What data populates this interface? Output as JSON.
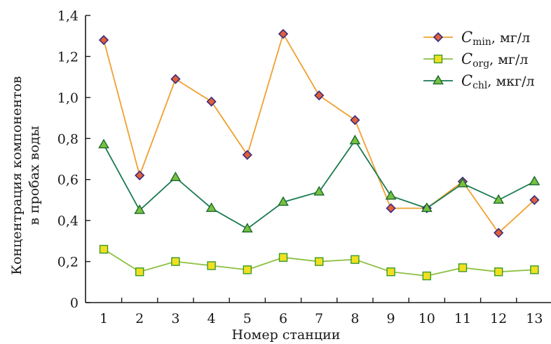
{
  "chart_data": {
    "type": "line",
    "xlabel": "Номер станции",
    "ylabel_lines": [
      "Концентрация компонентов",
      "в пробах воды"
    ],
    "ylim": [
      0,
      1.4
    ],
    "yticks": [
      0,
      0.2,
      0.4,
      0.6,
      0.8,
      1.0,
      1.2,
      1.4
    ],
    "ytick_labels": [
      "0",
      "0,2",
      "0,4",
      "0,6",
      "0,8",
      "1,0",
      "1,2",
      "1,4"
    ],
    "x": [
      "1",
      "2",
      "3",
      "4",
      "5",
      "6",
      "7",
      "8",
      "9",
      "10",
      "11",
      "12",
      "13"
    ],
    "grid": false,
    "legend_position": "top-right",
    "series": [
      {
        "name": "C_min, мг/л",
        "symbol": "C",
        "subscript": "min",
        "unit": ", мг/л",
        "line_color": "#f0a030",
        "marker": "diamond",
        "marker_fill": "#e0603a",
        "marker_edge": "#3a2a80",
        "values": [
          1.28,
          0.62,
          1.09,
          0.98,
          0.72,
          1.31,
          1.01,
          0.89,
          0.46,
          0.46,
          0.59,
          0.34,
          0.5
        ]
      },
      {
        "name": "C_org, мг/л",
        "symbol": "C",
        "subscript": "org",
        "unit": ", мг/л",
        "line_color": "#8cc040",
        "marker": "square",
        "marker_fill": "#f0e020",
        "marker_edge": "#3a9a2a",
        "values": [
          0.26,
          0.15,
          0.2,
          0.18,
          0.16,
          0.22,
          0.2,
          0.21,
          0.15,
          0.13,
          0.17,
          0.15,
          0.16
        ]
      },
      {
        "name": "C_chl, мкг/л",
        "symbol": "C",
        "subscript": "chl",
        "unit": ", мкг/л",
        "line_color": "#1a7a50",
        "marker": "triangle",
        "marker_fill": "#7ac040",
        "marker_edge": "#1a6a30",
        "values": [
          0.77,
          0.45,
          0.61,
          0.46,
          0.36,
          0.49,
          0.54,
          0.79,
          0.52,
          0.46,
          0.58,
          0.5,
          0.59
        ]
      }
    ]
  }
}
